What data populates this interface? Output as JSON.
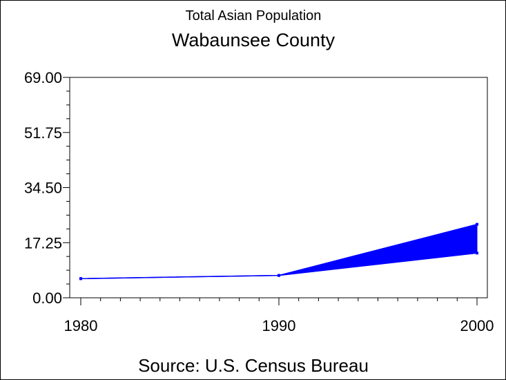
{
  "chart_data": {
    "type": "area",
    "title": "Total Asian Population",
    "subtitle": "Wabaunsee County",
    "source": "Source: U.S. Census Bureau",
    "xlabel": "",
    "ylabel": "",
    "x": [
      1980,
      1990,
      2000
    ],
    "xlim": [
      1980,
      2000
    ],
    "x_tick_labels": [
      "1980",
      "1990",
      "2000"
    ],
    "ylim": [
      0,
      69
    ],
    "y_tick_labels": [
      "0.00",
      "17.25",
      "34.50",
      "51.75",
      "69.00"
    ],
    "y_ticks": [
      0,
      17.25,
      34.5,
      51.75,
      69
    ],
    "series": [
      {
        "values": [
          6,
          7,
          23
        ]
      },
      {
        "values": [
          6,
          7,
          14
        ]
      }
    ],
    "fill_between_series": true,
    "grid": false,
    "legend": "none",
    "colors": {
      "series": "#0000ff",
      "axis": "#000000",
      "background": "#ffffff"
    }
  }
}
